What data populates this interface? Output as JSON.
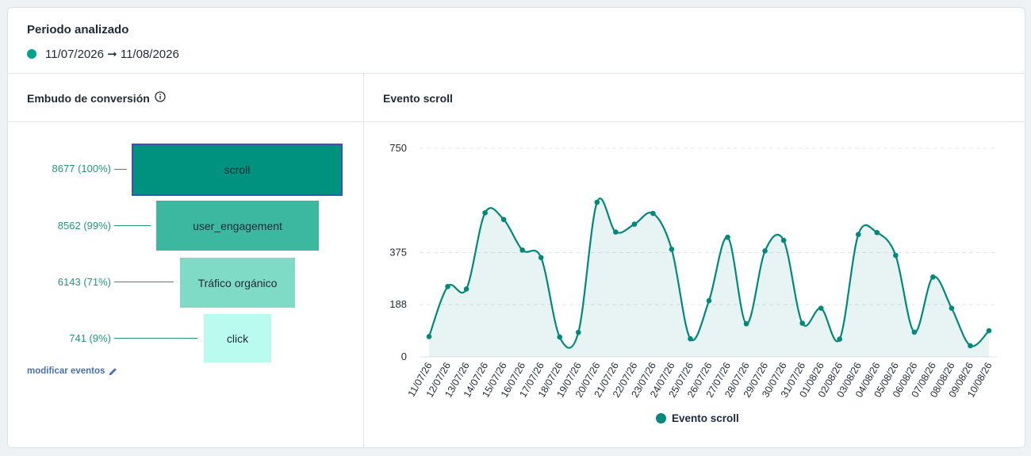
{
  "period": {
    "title": "Periodo analizado",
    "range": "11/07/2026 ➞ 11/08/2026",
    "dot_color": "#00a389"
  },
  "funnel": {
    "title": "Embudo de conversión",
    "info_icon": "info-circle-icon",
    "steps": [
      {
        "name": "scroll",
        "label": "8677 (100%)",
        "value": 8677,
        "percent": 100,
        "color": "#00927e",
        "selected": true
      },
      {
        "name": "user_engagement",
        "label": "8562 (99%)",
        "value": 8562,
        "percent": 99,
        "color": "#3cb8a0",
        "selected": false
      },
      {
        "name": "Tráfico orgánico",
        "label": "6143 (71%)",
        "value": 6143,
        "percent": 71,
        "color": "#7fdac6",
        "selected": false
      },
      {
        "name": "click",
        "label": "741 (9%)",
        "value": 741,
        "percent": 9,
        "color": "#b9fbee",
        "selected": false
      }
    ],
    "modify_label": "modificar eventos",
    "modify_icon": "pencil-icon"
  },
  "chart": {
    "title": "Evento scroll",
    "legend_label": "Evento scroll",
    "legend_color": "#00897b"
  },
  "chart_data": {
    "type": "area",
    "title": "Evento scroll",
    "xlabel": "",
    "ylabel": "",
    "ylim": [
      0,
      750
    ],
    "yticks": [
      0,
      188,
      375,
      750
    ],
    "grid": true,
    "legend": "bottom",
    "x": [
      "11/07/26",
      "12/07/26",
      "13/07/26",
      "14/07/26",
      "15/07/26",
      "16/07/26",
      "17/07/26",
      "18/07/26",
      "19/07/26",
      "20/07/26",
      "21/07/26",
      "22/07/26",
      "23/07/26",
      "24/07/26",
      "25/07/26",
      "26/07/26",
      "27/07/26",
      "28/07/26",
      "29/07/26",
      "30/07/26",
      "31/07/26",
      "01/08/26",
      "02/08/26",
      "03/08/26",
      "04/08/26",
      "05/08/26",
      "06/08/26",
      "07/08/26",
      "08/08/26",
      "09/08/26",
      "10/08/26"
    ],
    "series": [
      {
        "name": "Evento scroll",
        "color": "#00897b",
        "values": [
          73,
          253,
          244,
          518,
          494,
          384,
          357,
          71,
          88,
          556,
          449,
          477,
          516,
          387,
          65,
          202,
          430,
          119,
          381,
          419,
          121,
          175,
          64,
          440,
          447,
          365,
          89,
          287,
          175,
          40,
          94
        ]
      }
    ]
  }
}
